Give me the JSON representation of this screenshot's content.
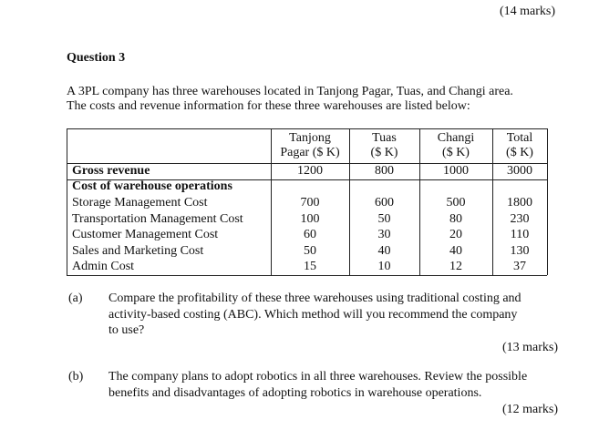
{
  "top_marks": "(14 marks)",
  "question": {
    "title": "Question 3",
    "intro": [
      "A 3PL company has three warehouses located in Tanjong Pagar, Tuas, and Changi area.",
      "The costs and revenue information for these three warehouses are listed below:"
    ]
  },
  "table": {
    "header": [
      [],
      [
        "Tanjong",
        "Pagar ($ K)"
      ],
      [
        "Tuas",
        "($ K)"
      ],
      [
        "Changi",
        "($ K)"
      ],
      [
        "Total",
        "($ K)"
      ]
    ],
    "rows": [
      [
        "Gross revenue",
        1200,
        800,
        1000,
        3000
      ],
      [
        "Cost of warehouse operations"
      ],
      [
        "Storage Management Cost",
        700,
        600,
        500,
        1800
      ],
      [
        "Transportation Management Cost",
        100,
        50,
        80,
        230
      ],
      [
        "Customer Management Cost",
        60,
        30,
        20,
        110
      ],
      [
        "Sales and Marketing Cost",
        50,
        40,
        40,
        130
      ],
      [
        "Admin Cost",
        15,
        10,
        12,
        37
      ]
    ]
  },
  "parts": [
    {
      "label": "(a)",
      "lines": [
        "Compare the profitability of these three warehouses using traditional costing and",
        "activity-based costing (ABC). Which method will you recommend the company",
        "to use?"
      ],
      "marks": "(13 marks)"
    },
    {
      "label": "(b)",
      "lines": [
        "The company plans to adopt robotics in all three warehouses. Review the possible",
        "benefits and disadvantages of adopting robotics in warehouse operations."
      ],
      "marks": "(12 marks)"
    }
  ]
}
